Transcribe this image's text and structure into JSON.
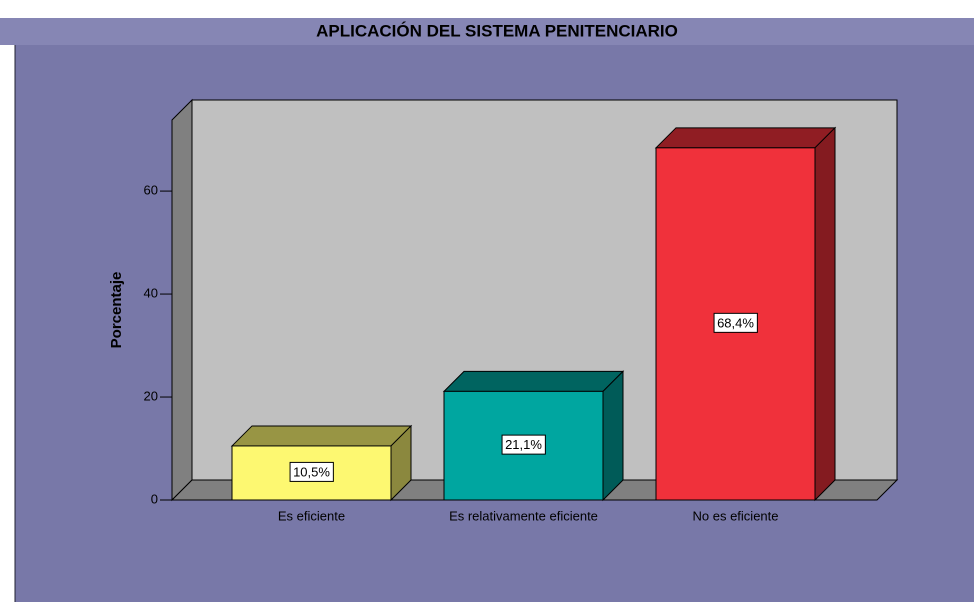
{
  "chart_data": {
    "type": "bar",
    "title": "APLICACIÓN DEL SISTEMA PENITENCIARIO",
    "y_label": "Porcentaje",
    "categories": [
      "Es eficiente",
      "Es relativamente eficiente",
      "No es eficiente"
    ],
    "values": [
      10.5,
      21.1,
      68.4
    ],
    "value_labels": [
      "10,5%",
      "21,1%",
      "68,4%"
    ],
    "colors": [
      "#fdf871",
      "#00a6a0",
      "#f0313b"
    ],
    "ylim": [
      0,
      74
    ],
    "yticks": [
      0,
      20,
      40,
      60
    ]
  }
}
